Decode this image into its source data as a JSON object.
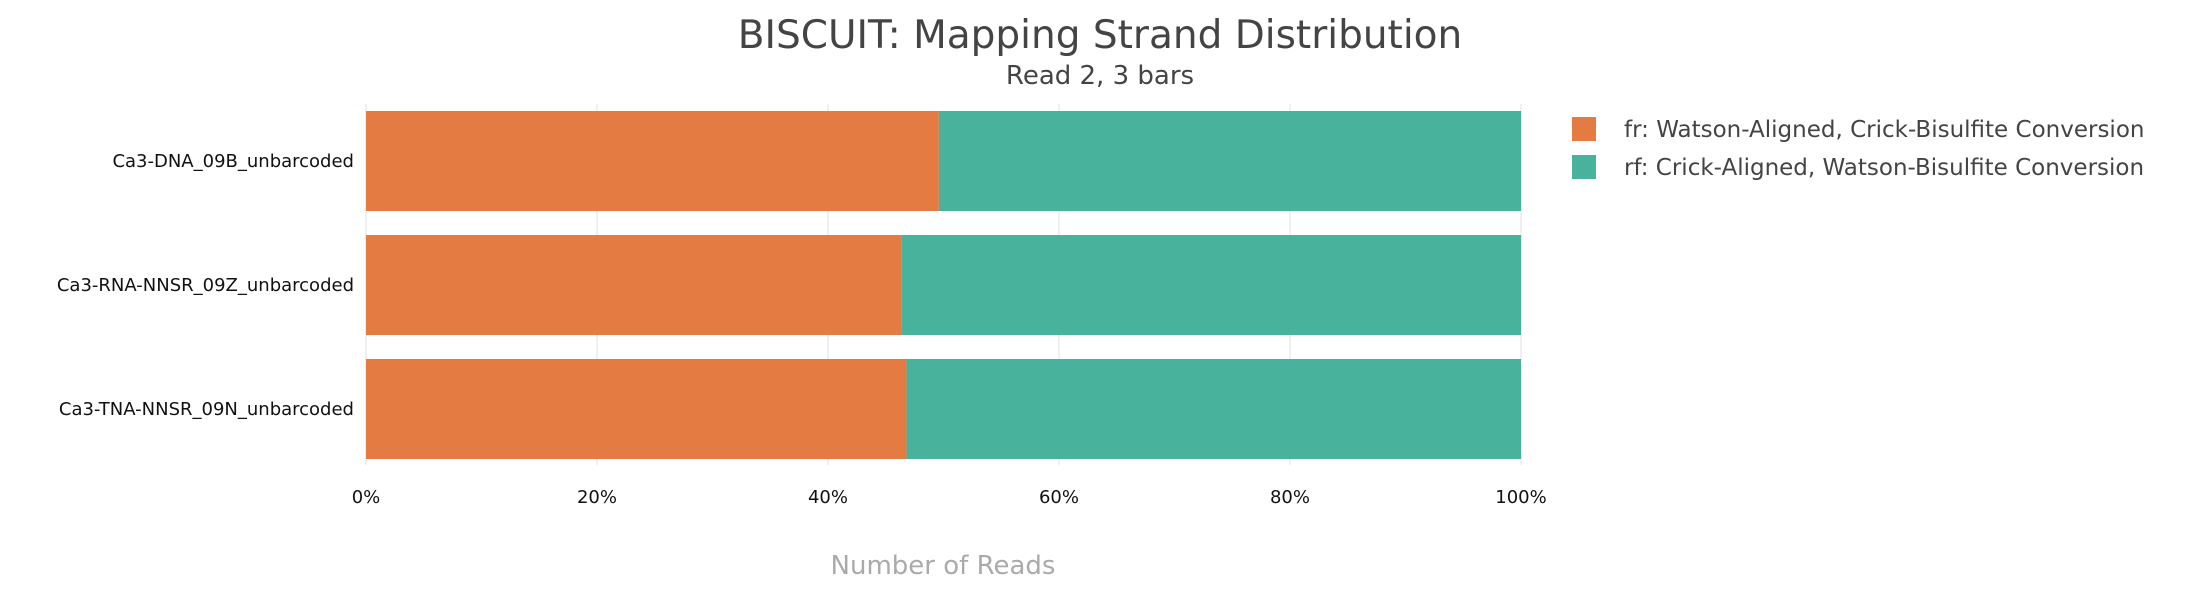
{
  "chart_data": {
    "type": "bar",
    "orientation": "horizontal",
    "stacked": true,
    "percent": true,
    "title": "BISCUIT: Mapping Strand Distribution",
    "subtitle": "Read 2, 3 bars",
    "xlabel": "Number of Reads",
    "ylabel": "",
    "xlim": [
      0,
      100
    ],
    "x_ticks": [
      "0%",
      "20%",
      "40%",
      "60%",
      "80%",
      "100%"
    ],
    "grid": true,
    "legend_position": "right",
    "categories": [
      "Ca3-DNA_09B_unbarcoded",
      "Ca3-RNA-NNSR_09Z_unbarcoded",
      "Ca3-TNA-NNSR_09N_unbarcoded"
    ],
    "series": [
      {
        "name": "fr: Watson-Aligned, Crick-Bisulfite Conversion",
        "color": "#e37b43",
        "values": [
          49.6,
          46.4,
          46.8
        ]
      },
      {
        "name": "rf: Crick-Aligned, Watson-Bisulfite Conversion",
        "color": "#48b29d",
        "values": [
          50.4,
          53.6,
          53.2
        ]
      }
    ]
  }
}
